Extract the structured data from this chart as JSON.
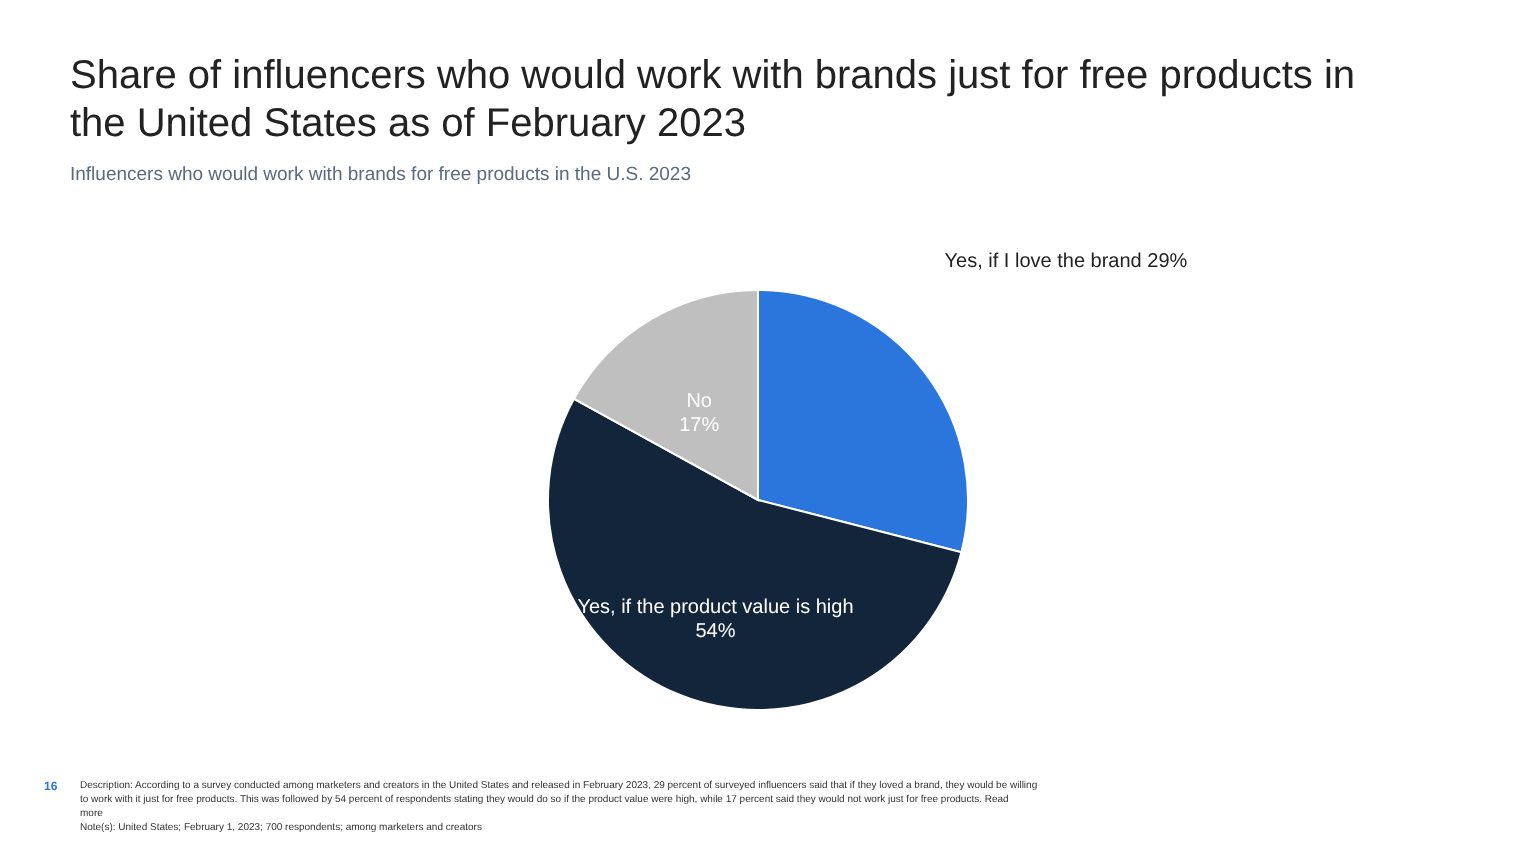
{
  "chart_data": {
    "type": "pie",
    "title": "Share of influencers who would work with brands just for free products in the United States as of February 2023",
    "subtitle": "Influencers who would work with brands for free products in the U.S. 2023",
    "categories": [
      "Yes, if I love the brand",
      "Yes, if the product value is high",
      "No"
    ],
    "values": [
      29,
      54,
      17
    ],
    "value_labels": [
      "29%",
      "54%",
      "17%"
    ],
    "colors": [
      "#2a76dd",
      "#12253b",
      "#bfbfbf"
    ],
    "annotations": [
      "16",
      "Description: According to a survey conducted among marketers and creators in the United States and released in February 2023, 29 percent of surveyed influencers said that if they loved a brand, they would be willing to work with it just for free products. This was followed by 54 percent of respondents stating they would do so if the product value were high, while 17 percent said they would not work just for free products. Read more",
      "Note(s): United States; February 1, 2023; 700 respondents; among marketers and creators"
    ]
  }
}
